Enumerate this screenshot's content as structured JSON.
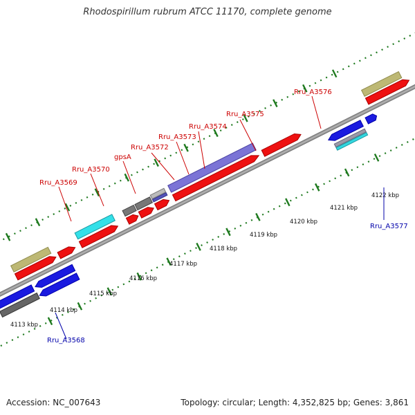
{
  "title": "Rhodospirillum rubrum ATCC 11170, complete genome",
  "footer": {
    "accession": "Accession: NC_007643",
    "summary": "Topology: circular; Length: 4,352,825 bp; Genes: 3,861"
  },
  "colors": {
    "forward_label": "#cc0000",
    "reverse_label": "#0000aa",
    "backbone": "#8c8c8c",
    "tick": "#1f7a1f"
  },
  "scale": {
    "unit": "kbp",
    "ticks": [
      "4113 kbp",
      "4114 kbp",
      "4115 kbp",
      "4116 kbp",
      "4117 kbp",
      "4118 kbp",
      "4119 kbp",
      "4120 kbp",
      "4121 kbp",
      "4122 kbp"
    ]
  },
  "labels": [
    {
      "text": "Rru_A3568",
      "strand": "reverse"
    },
    {
      "text": "Rru_A3569",
      "strand": "forward"
    },
    {
      "text": "Rru_A3570",
      "strand": "forward"
    },
    {
      "text": "gpsA",
      "strand": "forward"
    },
    {
      "text": "Rru_A3572",
      "strand": "forward"
    },
    {
      "text": "Rru_A3573",
      "strand": "forward"
    },
    {
      "text": "Rru_A3574",
      "strand": "forward"
    },
    {
      "text": "Rru_A3575",
      "strand": "forward"
    },
    {
      "text": "Rru_A3576",
      "strand": "forward"
    },
    {
      "text": "Rru_A3577",
      "strand": "reverse"
    }
  ]
}
